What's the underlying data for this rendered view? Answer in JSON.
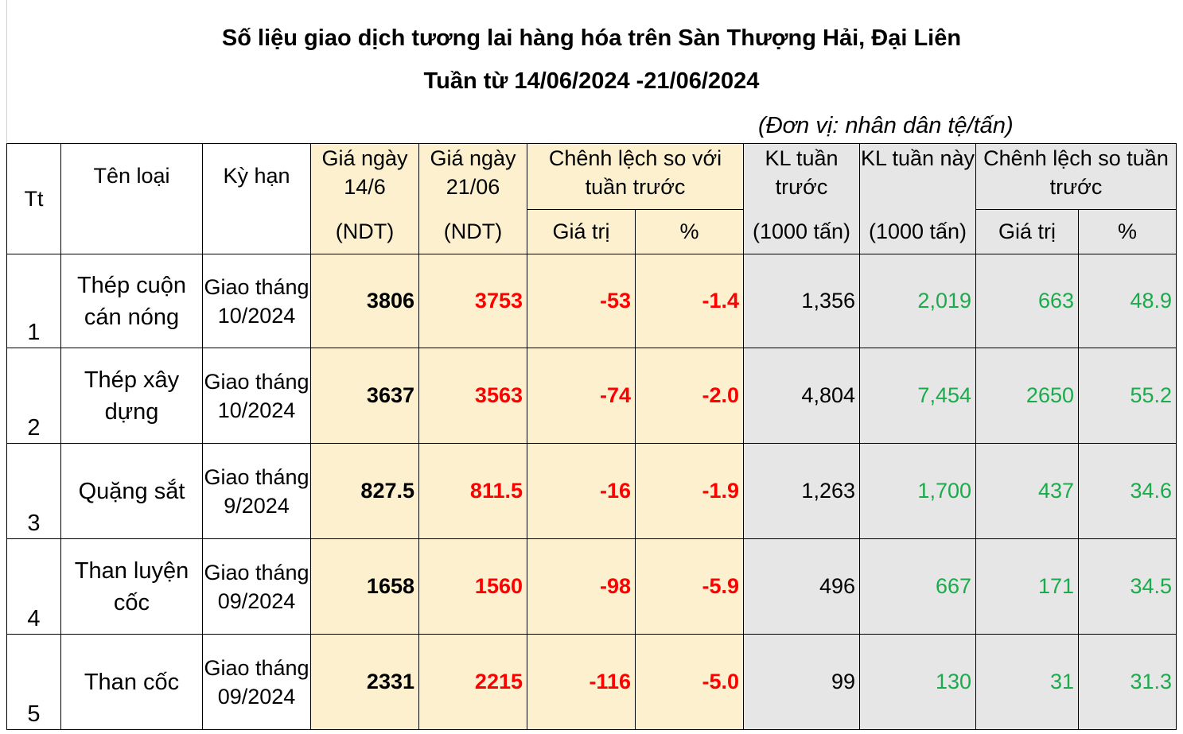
{
  "title": "Số liệu giao dịch tương lai hàng hóa trên Sàn Thượng Hải, Đại Liên",
  "subtitle": "Tuần từ 14/06/2024 -21/06/2024",
  "unit": "(Đơn vị: nhân dân tệ/tấn)",
  "headers": {
    "tt": "Tt",
    "name": "Tên loại",
    "term": "Kỳ hạn",
    "price_1406": "Giá ngày 14/6",
    "price_2106": "Giá ngày 21/06",
    "ndt": "(NDT)",
    "diff_price": "Chênh lệch so với tuần trước",
    "vol_prev": "KL tuần trước",
    "vol_this": "KL tuần này",
    "vol_unit": "(1000 tấn)",
    "diff_vol": "Chênh lệch so tuần trước",
    "value": "Giá trị",
    "percent": "%"
  },
  "rows": [
    {
      "tt": "1",
      "name": "Thép cuộn cán nóng",
      "term": "Giao tháng 10/2024",
      "p1": "3806",
      "p2": "3753",
      "dv": "-53",
      "dp": "-1.4",
      "kl1": "1,356",
      "kl2": "2,019",
      "cv": "663",
      "cp": "48.9"
    },
    {
      "tt": "2",
      "name": "Thép xây dựng",
      "term": "Giao tháng 10/2024",
      "p1": "3637",
      "p2": "3563",
      "dv": "-74",
      "dp": "-2.0",
      "kl1": "4,804",
      "kl2": "7,454",
      "cv": "2650",
      "cp": "55.2"
    },
    {
      "tt": "3",
      "name": "Quặng sắt",
      "term": "Giao tháng 9/2024",
      "p1": "827.5",
      "p2": "811.5",
      "dv": "-16",
      "dp": "-1.9",
      "kl1": "1,263",
      "kl2": "1,700",
      "cv": "437",
      "cp": "34.6"
    },
    {
      "tt": "4",
      "name": "Than luyện cốc",
      "term": "Giao tháng 09/2024",
      "p1": "1658",
      "p2": "1560",
      "dv": "-98",
      "dp": "-5.9",
      "kl1": "496",
      "kl2": "667",
      "cv": "171",
      "cp": "34.5"
    },
    {
      "tt": "5",
      "name": "Than cốc",
      "term": "Giao tháng 09/2024",
      "p1": "2331",
      "p2": "2215",
      "dv": "-116",
      "dp": "-5.0",
      "kl1": "99",
      "kl2": "130",
      "cv": "31",
      "cp": "31.3"
    }
  ],
  "colors": {
    "header_beige": "#fdf0cf",
    "header_grey": "#e6e6e6",
    "negative": "#ff0000",
    "positive": "#1aab4b"
  }
}
